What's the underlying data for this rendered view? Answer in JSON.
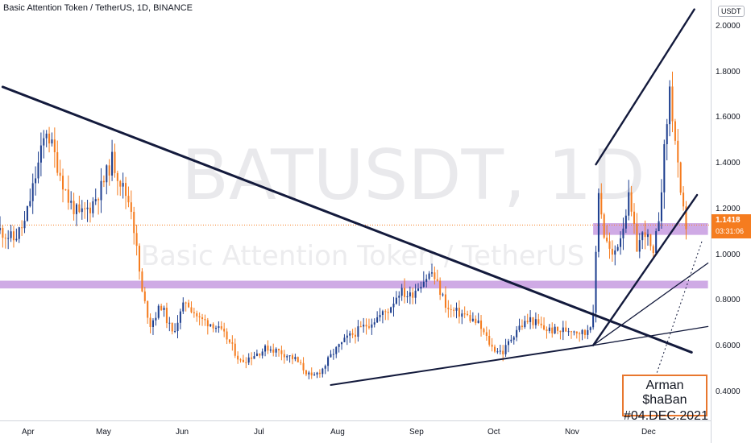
{
  "header": {
    "title": "Basic Attention Token / TetherUS, 1D, BINANCE"
  },
  "watermark": {
    "symbol": "BATUSDT, 1D",
    "name": "Basic Attention Token / TetherUS"
  },
  "axis": {
    "currency": "USDT",
    "y_ticks": [
      "2.0000",
      "1.8000",
      "1.6000",
      "1.4000",
      "1.2000",
      "1.0000",
      "0.8000",
      "0.6000",
      "0.4000"
    ],
    "x_ticks": [
      "Apr",
      "May",
      "Jun",
      "Jul",
      "Aug",
      "Sep",
      "Oct",
      "Nov",
      "Dec"
    ]
  },
  "price_tag": {
    "value": "1.1418",
    "countdown": "03:31:06"
  },
  "signature": {
    "author": "Arman $haBan",
    "date": "#04.DEC.2021"
  },
  "colors": {
    "up": "#1e3f8f",
    "down": "#f57c1f",
    "zone": "#c79be0",
    "trendline": "#131a3c",
    "price_line": "#f57c1f"
  },
  "chart_data": {
    "type": "candlestick",
    "title": "Basic Attention Token / TetherUS, 1D, BINANCE",
    "ylim": [
      0.31,
      2.1
    ],
    "x_range": [
      "2021-03-28",
      "2021-12-13"
    ],
    "y_ticks": [
      2.0,
      1.8,
      1.6,
      1.4,
      1.2,
      1.0,
      0.8,
      0.6,
      0.4
    ],
    "last_price": 1.1418,
    "price_path": [
      [
        "2021-03-28",
        1.12
      ],
      [
        "2021-04-02",
        1.08
      ],
      [
        "2021-04-06",
        1.15
      ],
      [
        "2021-04-10",
        1.35
      ],
      [
        "2021-04-14",
        1.55
      ],
      [
        "2021-04-18",
        1.4
      ],
      [
        "2021-04-22",
        1.25
      ],
      [
        "2021-04-26",
        1.18
      ],
      [
        "2021-04-30",
        1.22
      ],
      [
        "2021-05-04",
        1.3
      ],
      [
        "2021-05-08",
        1.42
      ],
      [
        "2021-05-12",
        1.3
      ],
      [
        "2021-05-15",
        1.22
      ],
      [
        "2021-05-19",
        0.85
      ],
      [
        "2021-05-22",
        0.72
      ],
      [
        "2021-05-26",
        0.8
      ],
      [
        "2021-05-30",
        0.68
      ],
      [
        "2021-06-04",
        0.82
      ],
      [
        "2021-06-09",
        0.74
      ],
      [
        "2021-06-14",
        0.72
      ],
      [
        "2021-06-19",
        0.66
      ],
      [
        "2021-06-24",
        0.56
      ],
      [
        "2021-06-29",
        0.59
      ],
      [
        "2021-07-04",
        0.62
      ],
      [
        "2021-07-09",
        0.6
      ],
      [
        "2021-07-14",
        0.57
      ],
      [
        "2021-07-20",
        0.49
      ],
      [
        "2021-07-24",
        0.53
      ],
      [
        "2021-07-28",
        0.6
      ],
      [
        "2021-08-02",
        0.66
      ],
      [
        "2021-08-07",
        0.7
      ],
      [
        "2021-08-12",
        0.74
      ],
      [
        "2021-08-17",
        0.78
      ],
      [
        "2021-08-21",
        0.86
      ],
      [
        "2021-08-25",
        0.84
      ],
      [
        "2021-08-29",
        0.9
      ],
      [
        "2021-09-02",
        0.94
      ],
      [
        "2021-09-05",
        0.86
      ],
      [
        "2021-09-08",
        0.78
      ],
      [
        "2021-09-14",
        0.76
      ],
      [
        "2021-09-19",
        0.72
      ],
      [
        "2021-09-24",
        0.62
      ],
      [
        "2021-09-28",
        0.6
      ],
      [
        "2021-10-03",
        0.7
      ],
      [
        "2021-10-08",
        0.74
      ],
      [
        "2021-10-13",
        0.7
      ],
      [
        "2021-10-18",
        0.69
      ],
      [
        "2021-10-23",
        0.7
      ],
      [
        "2021-10-28",
        0.68
      ],
      [
        "2021-10-31",
        0.75
      ],
      [
        "2021-11-02",
        1.3
      ],
      [
        "2021-11-04",
        1.1
      ],
      [
        "2021-11-07",
        1.0
      ],
      [
        "2021-11-10",
        1.1
      ],
      [
        "2021-11-13",
        1.25
      ],
      [
        "2021-11-16",
        1.05
      ],
      [
        "2021-11-19",
        1.12
      ],
      [
        "2021-11-22",
        1.0
      ],
      [
        "2021-11-24",
        1.18
      ],
      [
        "2021-11-26",
        1.45
      ],
      [
        "2021-11-28",
        1.72
      ],
      [
        "2021-11-30",
        1.5
      ],
      [
        "2021-12-02",
        1.25
      ],
      [
        "2021-12-04",
        1.14
      ]
    ],
    "zones": [
      {
        "from": "2021-03-28",
        "to": "2021-12-12",
        "low": 0.872,
        "high": 0.905
      },
      {
        "from": "2021-10-31",
        "to": "2021-12-12",
        "low": 1.1,
        "high": 1.15
      }
    ],
    "trendlines": [
      {
        "points": [
          [
            "2021-03-29",
            1.73
          ],
          [
            "2021-12-06",
            0.6
          ]
        ],
        "width": 3
      },
      {
        "points": [
          [
            "2021-07-27",
            0.461
          ],
          [
            "2021-10-31",
            0.63
          ]
        ],
        "width": 2
      },
      {
        "points": [
          [
            "2021-10-31",
            0.63
          ],
          [
            "2021-12-08",
            1.27
          ]
        ],
        "width": 2.4
      },
      {
        "points": [
          [
            "2021-11-01",
            1.4
          ],
          [
            "2021-12-07",
            2.06
          ]
        ],
        "width": 2.4
      },
      {
        "points": [
          [
            "2021-10-31",
            0.63
          ],
          [
            "2021-12-12",
            0.71
          ]
        ],
        "width": 1.3
      },
      {
        "points": [
          [
            "2021-10-31",
            0.63
          ],
          [
            "2021-12-12",
            0.98
          ]
        ],
        "width": 1.3
      }
    ],
    "dotted_line": {
      "points": [
        [
          "2021-11-20",
          0.4
        ],
        [
          "2021-12-10",
          1.08
        ]
      ]
    }
  }
}
